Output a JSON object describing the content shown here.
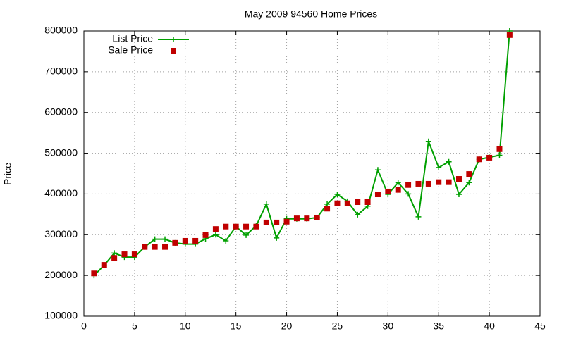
{
  "chart_data": {
    "type": "line",
    "title": "May 2009 94560 Home Prices",
    "y_label": "Price",
    "x": [
      1,
      2,
      3,
      4,
      5,
      6,
      7,
      8,
      9,
      10,
      11,
      12,
      13,
      14,
      15,
      16,
      17,
      18,
      19,
      20,
      21,
      22,
      23,
      24,
      25,
      26,
      27,
      28,
      29,
      30,
      31,
      32,
      33,
      34,
      35,
      36,
      37,
      38,
      39,
      40,
      41,
      42
    ],
    "series": [
      {
        "name": "List Price",
        "color": "#00a000",
        "style": "linespoints",
        "values": [
          200000,
          225000,
          255000,
          245000,
          245000,
          270000,
          289000,
          289000,
          280000,
          277000,
          277000,
          290000,
          300000,
          285000,
          320000,
          299000,
          322000,
          375000,
          292000,
          339000,
          339000,
          339000,
          342000,
          375000,
          399000,
          382000,
          349000,
          370000,
          459000,
          399000,
          428000,
          400000,
          344000,
          529000,
          465000,
          479000,
          399000,
          428000,
          485000,
          490000,
          495000,
          800000
        ]
      },
      {
        "name": "Sale Price",
        "color": "#c00000",
        "style": "points",
        "values": [
          205000,
          226000,
          243000,
          252000,
          252000,
          270000,
          270000,
          270000,
          280000,
          285000,
          285000,
          299000,
          314000,
          320000,
          320000,
          320000,
          320000,
          330000,
          330000,
          332000,
          340000,
          340000,
          342000,
          364000,
          377000,
          377000,
          380000,
          380000,
          399000,
          406000,
          410000,
          422000,
          425000,
          425000,
          429000,
          429000,
          437000,
          449000,
          485000,
          489000,
          510000,
          790000
        ]
      }
    ],
    "xlim": [
      0,
      45
    ],
    "xticks": [
      0,
      5,
      10,
      15,
      20,
      25,
      30,
      35,
      40,
      45
    ],
    "ylim": [
      100000,
      800000
    ],
    "yticks": [
      100000,
      200000,
      300000,
      400000,
      500000,
      600000,
      700000,
      800000
    ],
    "grid": true,
    "legend": "top-left"
  }
}
